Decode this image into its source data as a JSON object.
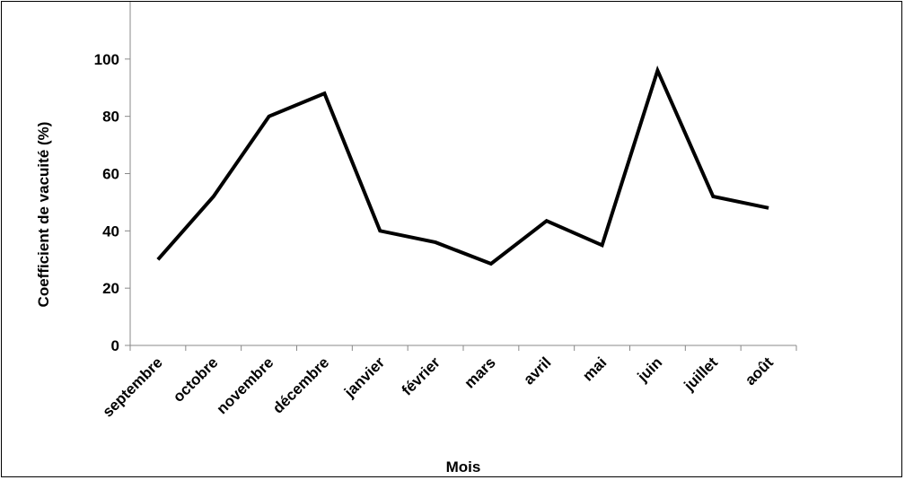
{
  "chart_data": {
    "type": "line",
    "title": "",
    "xlabel": "Mois",
    "ylabel": "Coefficient de vacuité (%)",
    "categories": [
      "septembre",
      "octobre",
      "novembre",
      "décembre",
      "janvier",
      "février",
      "mars",
      "avril",
      "mai",
      "juin",
      "juillet",
      "août"
    ],
    "series": [
      {
        "values": [
          30,
          52,
          80,
          88,
          40,
          36,
          28.5,
          43.5,
          35,
          96,
          52,
          48
        ]
      }
    ],
    "ylim": [
      0,
      120
    ],
    "yticks": [
      0,
      20,
      40,
      60,
      80,
      100
    ],
    "grid": false,
    "legend": "none",
    "line_color": "#000000"
  }
}
